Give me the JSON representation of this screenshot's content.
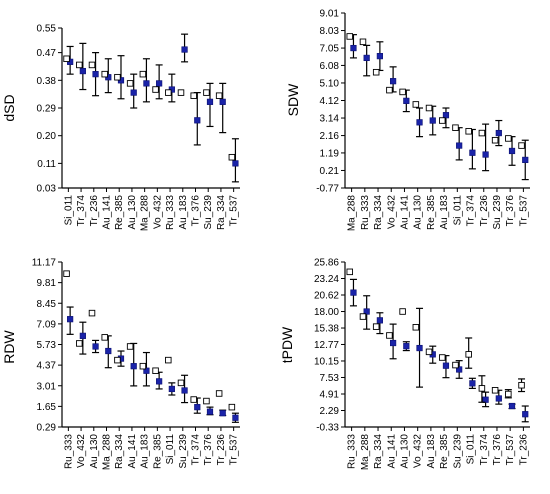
{
  "chart_data": [
    {
      "type": "scatter",
      "ylabel": "dSD",
      "yticks": [
        "0.03",
        "0.11",
        "0.20",
        "0.29",
        "0.38",
        "0.47",
        "0.55"
      ],
      "ylim": [
        0.03,
        0.55
      ],
      "categories": [
        "Si_011",
        "Tr_374",
        "Tr_236",
        "Au_141",
        "Re_385",
        "Au_130",
        "Ma_288",
        "Vo_432",
        "Ru_333",
        "Au_183",
        "Tr_376",
        "Su_239",
        "Ra_334",
        "Tr_537"
      ],
      "series": [
        {
          "marker": "filled",
          "values": [
            0.44,
            0.41,
            0.4,
            0.39,
            0.38,
            0.34,
            0.37,
            0.37,
            0.35,
            0.48,
            0.25,
            0.31,
            0.31,
            0.11
          ],
          "low": [
            0.4,
            0.35,
            0.33,
            0.34,
            0.32,
            0.29,
            0.31,
            0.32,
            0.31,
            0.44,
            0.17,
            0.23,
            0.21,
            0.05
          ],
          "high": [
            0.49,
            0.5,
            0.47,
            0.45,
            0.46,
            0.4,
            0.45,
            0.43,
            0.4,
            0.53,
            0.34,
            0.37,
            0.37,
            0.19
          ]
        },
        {
          "marker": "open",
          "values": [
            0.45,
            0.43,
            0.43,
            0.4,
            0.39,
            0.37,
            0.4,
            0.35,
            0.34,
            0.34,
            0.33,
            0.34,
            0.33,
            0.13
          ]
        }
      ]
    },
    {
      "type": "scatter",
      "ylabel": "SDW",
      "yticks": [
        "-0.77",
        "0.21",
        "1.19",
        "2.16",
        "3.14",
        "4.12",
        "5.10",
        "6.08",
        "7.05",
        "8.03",
        "9.01"
      ],
      "ylim": [
        -0.77,
        9.01
      ],
      "categories": [
        "Ma_288",
        "Ru_333",
        "Ra_334",
        "Vo_432",
        "Au_141",
        "Au_130",
        "Re_385",
        "Au_183",
        "Si_011",
        "Tr_374",
        "Tr_236",
        "Su_239",
        "Tr_376",
        "Tr_537"
      ],
      "series": [
        {
          "marker": "filled",
          "values": [
            7.05,
            6.5,
            6.6,
            5.2,
            4.1,
            2.9,
            3.0,
            3.3,
            1.6,
            1.2,
            1.1,
            2.3,
            1.3,
            0.8
          ],
          "low": [
            6.5,
            5.5,
            5.8,
            4.6,
            3.5,
            2.1,
            2.2,
            2.6,
            0.8,
            0.3,
            0.2,
            1.6,
            0.5,
            -0.3
          ],
          "high": [
            7.8,
            7.2,
            7.4,
            6.0,
            4.7,
            3.7,
            3.8,
            3.7,
            2.6,
            2.5,
            2.8,
            3.0,
            2.1,
            1.9
          ]
        },
        {
          "marker": "open",
          "values": [
            7.7,
            7.4,
            5.7,
            4.7,
            4.6,
            3.9,
            3.7,
            3.0,
            2.6,
            2.4,
            2.3,
            1.9,
            2.0,
            1.6
          ]
        }
      ]
    },
    {
      "type": "scatter",
      "ylabel": "RDW",
      "yticks": [
        "0.29",
        "1.65",
        "3.01",
        "4.37",
        "5.73",
        "7.09",
        "8.45",
        "9.81",
        "11.17"
      ],
      "ylim": [
        0.29,
        11.17
      ],
      "categories": [
        "Ru_333",
        "Vo_432",
        "Au_130",
        "Ma_288",
        "Ra_334",
        "Au_141",
        "Au_183",
        "Re_385",
        "Si_011",
        "Su_239",
        "Tr_374",
        "Tr_376",
        "Tr_236",
        "Tr_537"
      ],
      "series": [
        {
          "marker": "filled",
          "values": [
            7.4,
            6.3,
            5.6,
            5.3,
            4.8,
            4.3,
            4.0,
            3.3,
            2.8,
            2.7,
            1.6,
            1.3,
            1.2,
            0.9
          ],
          "low": [
            6.4,
            5.1,
            5.2,
            4.2,
            4.3,
            3.0,
            3.0,
            2.8,
            2.4,
            1.9,
            1.2,
            1.1,
            1.05,
            0.6
          ],
          "high": [
            8.2,
            7.2,
            6.0,
            6.3,
            5.3,
            5.8,
            5.2,
            3.9,
            3.2,
            3.7,
            2.2,
            1.6,
            1.4,
            1.2
          ]
        },
        {
          "marker": "open",
          "values": [
            10.4,
            5.8,
            7.8,
            6.2,
            4.7,
            5.6,
            4.3,
            4.0,
            4.7,
            3.2,
            2.1,
            2.0,
            2.5,
            1.6
          ]
        }
      ]
    },
    {
      "type": "scatter",
      "ylabel": "tPDW",
      "yticks": [
        "-0.33",
        "2.29",
        "4.91",
        "7.53",
        "10.15",
        "12.77",
        "15.38",
        "18.00",
        "20.62",
        "23.24",
        "25.86"
      ],
      "ylim": [
        -0.33,
        25.86
      ],
      "categories": [
        "Ru_333",
        "Ma_288",
        "Ra_334",
        "Au_141",
        "Au_130",
        "Vo_432",
        "Au_183",
        "Re_385",
        "Su_239",
        "Si_011",
        "Tr_374",
        "Tr_376",
        "Tr_537",
        "Tr_236"
      ],
      "series": [
        {
          "marker": "filled",
          "values": [
            21.0,
            18.0,
            16.6,
            13.0,
            12.5,
            12.2,
            11.2,
            9.4,
            8.8,
            6.6,
            4.0,
            4.2,
            3.0,
            1.7
          ],
          "low": [
            18.9,
            15.2,
            14.5,
            10.5,
            11.8,
            6.0,
            9.8,
            7.5,
            7.4,
            5.8,
            2.9,
            3.3,
            2.6,
            0.5
          ],
          "high": [
            23.1,
            20.5,
            17.8,
            16.0,
            13.2,
            18.5,
            12.5,
            11.0,
            10.2,
            7.4,
            5.2,
            5.5,
            3.3,
            3.0
          ]
        },
        {
          "marker": "open",
          "values": [
            24.3,
            17.2,
            15.6,
            14.2,
            18.0,
            15.5,
            11.6,
            10.7,
            9.5,
            11.2,
            5.8,
            5.5,
            4.9,
            6.3
          ],
          "low": [
            null,
            null,
            null,
            null,
            null,
            null,
            null,
            null,
            null,
            9.0,
            3.6,
            null,
            4.3,
            5.3
          ],
          "high": [
            null,
            null,
            null,
            null,
            null,
            null,
            null,
            null,
            null,
            13.8,
            7.8,
            null,
            5.6,
            7.3
          ]
        }
      ]
    }
  ]
}
